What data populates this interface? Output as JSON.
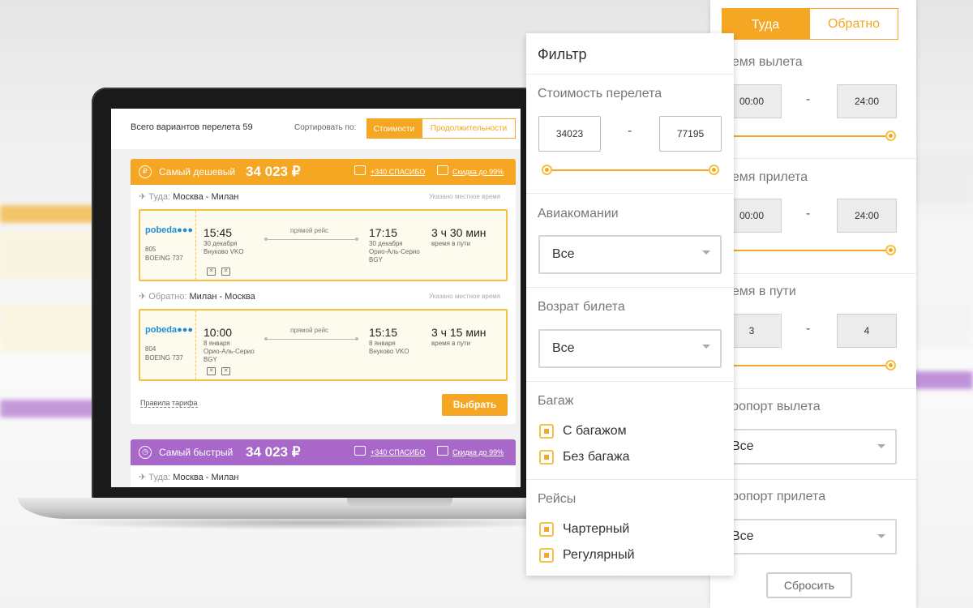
{
  "screen": {
    "total_label": "Всего вариантов перелета 59",
    "sort_label": "Сортировать по:",
    "sort_options": [
      "Стоимости",
      "Продолжительности"
    ],
    "cards": [
      {
        "title": "Самый дешевый",
        "price": "34 023 ₽",
        "bonus": "+340 СПАСИБО",
        "discount": "Скидка до 99%",
        "color": "#f5a623",
        "outbound": {
          "label": "Туда:",
          "route": "Москва - Милан",
          "local_time_note": "Указано местное время",
          "airline_logo": "pobeda",
          "flight_no": "805",
          "aircraft": "BOEING 737",
          "dep_time": "15:45",
          "dep_date": "30 декабря",
          "dep_airport": "Внуково VKO",
          "route_type": "прямой рейс",
          "arr_time": "17:15",
          "arr_date": "30 декабря",
          "arr_airport": "Орио-Аль-Серио",
          "arr_code": "BGY",
          "duration": "3 ч 30 мин",
          "duration_label": "время в пути"
        },
        "return": {
          "label": "Обратно:",
          "route": "Милан - Москва",
          "local_time_note": "Указано местное время",
          "airline_logo": "pobeda",
          "flight_no": "804",
          "aircraft": "BOEING 737",
          "dep_time": "10:00",
          "dep_date": "8 января",
          "dep_airport": "Орио-Аль-Серио",
          "dep_code": "BGY",
          "route_type": "прямой рейс",
          "arr_time": "15:15",
          "arr_date": "8 января",
          "arr_airport": "Внуково VKO",
          "duration": "3 ч 15 мин",
          "duration_label": "время в пути"
        },
        "rules_link": "Правила тарифа",
        "choose_button": "Выбрать"
      },
      {
        "title": "Самый быстрый",
        "price": "34 023 ₽",
        "bonus": "+340 СПАСИБО",
        "discount": "Скидка до 99%",
        "color": "#a968c9",
        "outbound": {
          "label": "Туда:",
          "route": "Москва - Милан"
        }
      }
    ]
  },
  "filter": {
    "title": "Фильтр",
    "price": {
      "label": "Стоимость перелета",
      "min": "34023",
      "max": "77195",
      "dash": "-"
    },
    "airlines": {
      "label": "Авиакомании",
      "value": "Все"
    },
    "refund": {
      "label": "Возрат билета",
      "value": "Все"
    },
    "baggage": {
      "label": "Багаж",
      "options": [
        "С багажом",
        "Без багажа"
      ]
    },
    "flights": {
      "label": "Рейсы",
      "options": [
        "Чартерный",
        "Регулярный"
      ]
    }
  },
  "right_panel": {
    "tabs": [
      "Туда",
      "Обратно"
    ],
    "departure_time": {
      "label": "ремя вылета",
      "min": "00:00",
      "max": "24:00"
    },
    "arrival_time": {
      "label": "ремя прилета",
      "min": "00:00",
      "max": "24:00"
    },
    "travel_time": {
      "label": "ремя в пути",
      "min": "3",
      "max": "4"
    },
    "dep_airport": {
      "label": "эропорт вылета",
      "value": "Все"
    },
    "arr_airport": {
      "label": "эропорт прилета",
      "value": "Все"
    },
    "reset_button": "Сбросить",
    "dash": "-"
  },
  "colors": {
    "accent": "#f5a623",
    "purple": "#a968c9"
  }
}
